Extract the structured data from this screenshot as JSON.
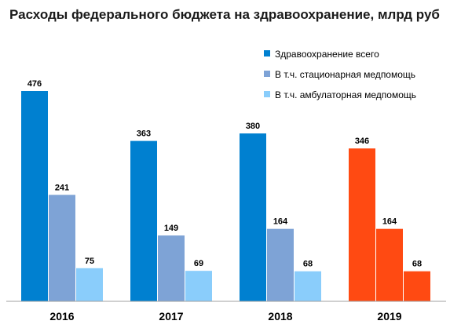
{
  "colors": {
    "total": "#0080d0",
    "inpatient": "#7ea3d6",
    "outpatient": "#8acdfb",
    "highlight": "#ff4a12",
    "axis": "#a0a0a0"
  },
  "chart_data": {
    "type": "bar",
    "title": "Расходы федерального бюджета на здравоохранение, млрд руб",
    "categories": [
      "2016",
      "2017",
      "2018",
      "2019"
    ],
    "series": [
      {
        "name": "Здравоохранение всего",
        "values": [
          476,
          363,
          380,
          346
        ]
      },
      {
        "name": "В т.ч. стационарная медпомощь",
        "values": [
          241,
          149,
          164,
          164
        ]
      },
      {
        "name": "В т.ч. амбулаторная медпомощь",
        "values": [
          75,
          69,
          68,
          68
        ]
      }
    ],
    "highlighted_category": "2019",
    "xlabel": "",
    "ylabel": "",
    "ylim": [
      0,
      476
    ],
    "grid": false,
    "legend": "top-right"
  }
}
